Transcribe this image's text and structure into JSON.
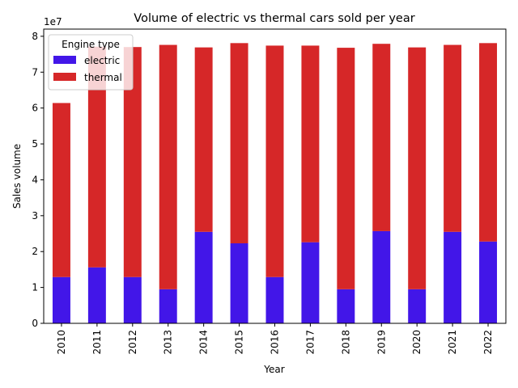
{
  "chart_data": {
    "type": "bar",
    "stacked": true,
    "title": "Volume of electric vs thermal cars sold per year",
    "xlabel": "Year",
    "ylabel": "Sales volume",
    "y_offset_label": "1e7",
    "ylim": [
      0,
      82000000
    ],
    "yticks": [
      0,
      10000000,
      20000000,
      30000000,
      40000000,
      50000000,
      60000000,
      70000000,
      80000000
    ],
    "ytick_labels": [
      "0",
      "1",
      "2",
      "3",
      "4",
      "5",
      "6",
      "7",
      "8"
    ],
    "grid": false,
    "legend": {
      "title": "Engine type",
      "position": "top-left"
    },
    "categories": [
      "2010",
      "2011",
      "2012",
      "2013",
      "2014",
      "2015",
      "2016",
      "2017",
      "2018",
      "2019",
      "2020",
      "2021",
      "2022"
    ],
    "series": [
      {
        "name": "electric",
        "color": "#4216e8",
        "values": [
          12900000,
          15600000,
          12900000,
          9500000,
          25500000,
          22300000,
          12900000,
          22600000,
          9500000,
          25700000,
          9500000,
          25500000,
          22800000
        ]
      },
      {
        "name": "thermal",
        "color": "#d62728",
        "values": [
          48500000,
          61500000,
          64100000,
          68100000,
          51400000,
          55800000,
          64500000,
          54800000,
          67300000,
          52200000,
          67400000,
          52100000,
          55300000
        ]
      }
    ]
  }
}
